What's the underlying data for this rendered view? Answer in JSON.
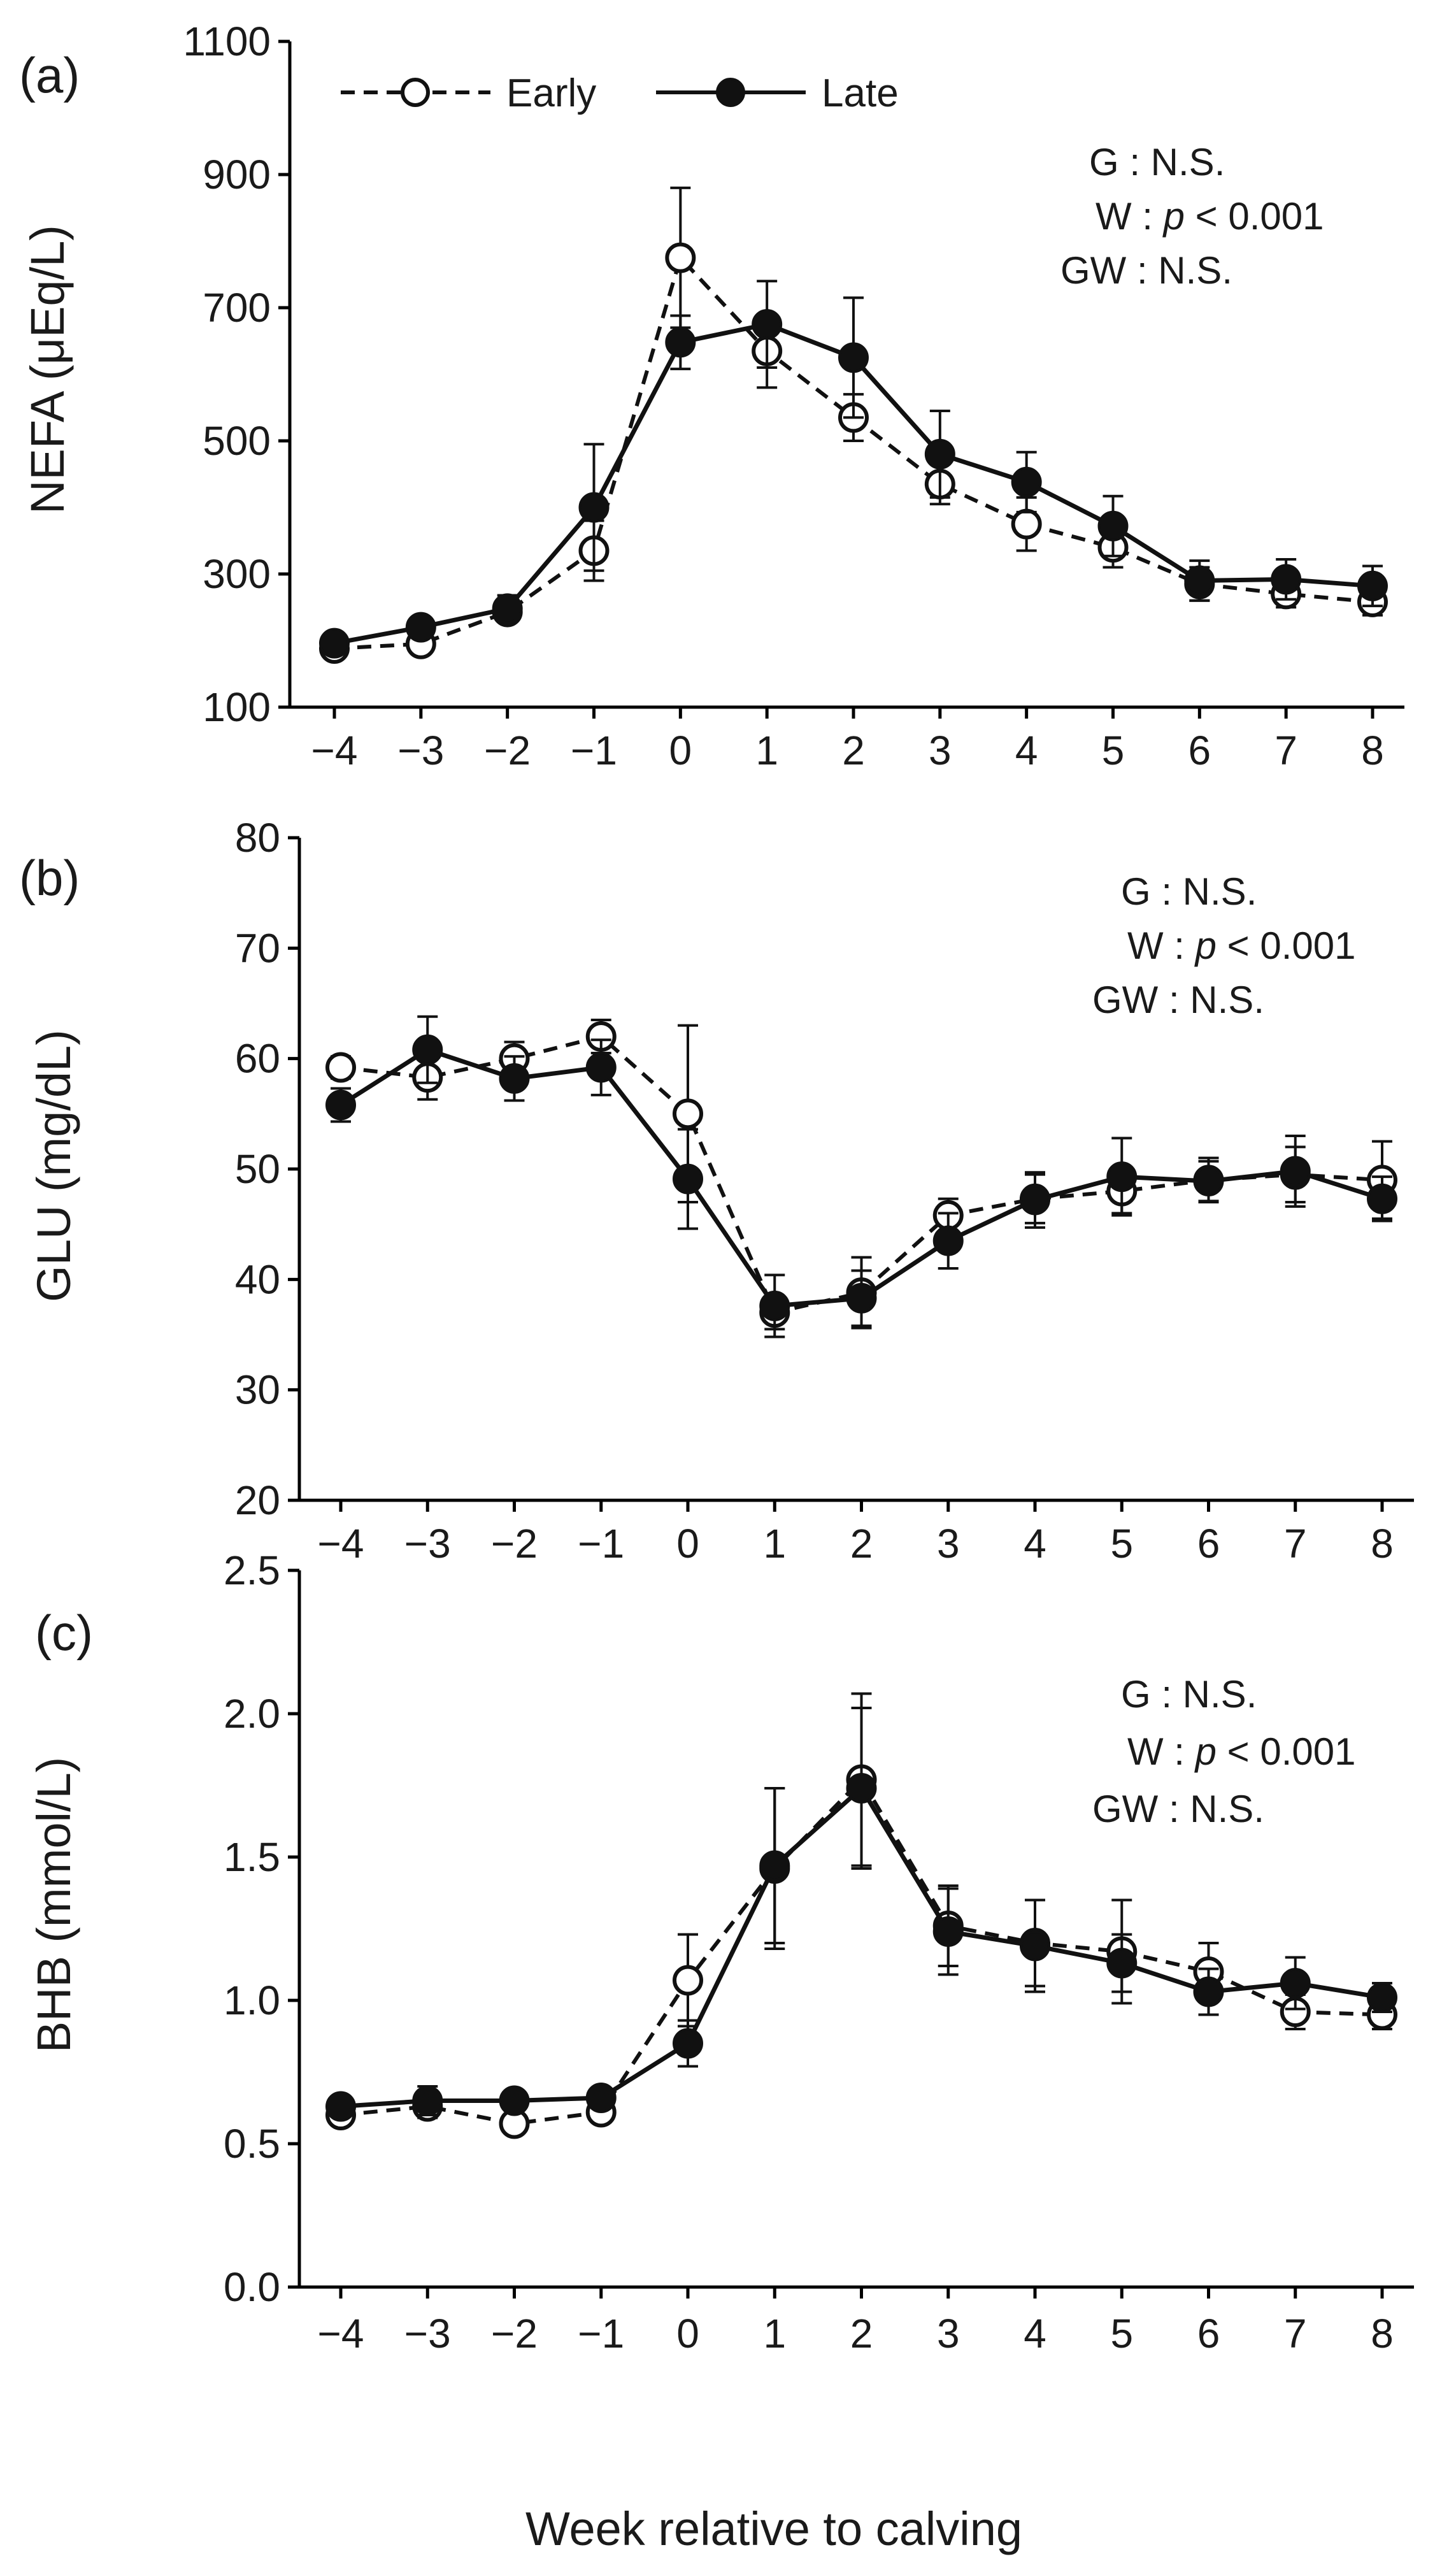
{
  "legend": {
    "early": "Early",
    "late": "Late"
  },
  "colors": {
    "axis": "#000000",
    "series": "#111111",
    "early_fill": "#ffffff",
    "late_fill": "#111111"
  },
  "xlabel": "Week relative to calving",
  "chart_data": [
    {
      "panel": "(a)",
      "type": "line",
      "ylabel": "NEFA (μEq/L)",
      "ylim": [
        100,
        1100
      ],
      "yticks": [
        100,
        300,
        500,
        700,
        900,
        1100
      ],
      "categories": [
        "−4",
        "−3",
        "−2",
        "−1",
        "0",
        "1",
        "2",
        "3",
        "4",
        "5",
        "6",
        "7",
        "8"
      ],
      "stats": {
        "g": "G : N.S.",
        "w_prefix": "W : ",
        "w_p": "p",
        "w_value": " < 0.001",
        "gw": "GW : N.S."
      },
      "series": [
        {
          "name": "Early",
          "style": "dashed-open",
          "values": [
            188,
            195,
            243,
            335,
            775,
            635,
            535,
            435,
            375,
            340,
            285,
            270,
            258
          ],
          "errors": [
            10,
            12,
            15,
            45,
            105,
            55,
            35,
            30,
            40,
            30,
            25,
            20,
            20
          ]
        },
        {
          "name": "Late",
          "style": "solid-filled",
          "values": [
            196,
            220,
            248,
            400,
            648,
            675,
            625,
            480,
            438,
            372,
            290,
            292,
            282
          ],
          "errors": [
            10,
            15,
            20,
            95,
            40,
            65,
            90,
            65,
            45,
            45,
            30,
            30,
            30
          ]
        }
      ]
    },
    {
      "panel": "(b)",
      "type": "line",
      "ylabel": "GLU  (mg/dL)",
      "ylim": [
        20,
        80
      ],
      "yticks": [
        20,
        30,
        40,
        50,
        60,
        70,
        80
      ],
      "categories": [
        "−4",
        "−3",
        "−2",
        "−1",
        "0",
        "1",
        "2",
        "3",
        "4",
        "5",
        "6",
        "7",
        "8"
      ],
      "stats": {
        "g": "G : N.S.",
        "w_prefix": "W : ",
        "w_p": "p",
        "w_value": " < 0.001",
        "gw": "GW : N.S."
      },
      "series": [
        {
          "name": "Early",
          "style": "dashed-open",
          "values": [
            59.2,
            58.3,
            60.0,
            62.0,
            55.0,
            37.0,
            38.8,
            45.8,
            47.3,
            48.0,
            49.0,
            49.5,
            49.0
          ],
          "errors": [
            1.0,
            2.0,
            1.5,
            1.5,
            8.0,
            1.5,
            3.2,
            1.5,
            2.2,
            2.0,
            2.0,
            2.5,
            3.5
          ]
        },
        {
          "name": "Late",
          "style": "solid-filled",
          "values": [
            55.8,
            60.8,
            58.2,
            59.2,
            49.1,
            37.6,
            38.3,
            43.5,
            47.2,
            49.3,
            48.9,
            49.8,
            47.3
          ],
          "errors": [
            1.5,
            3.0,
            2.0,
            2.5,
            4.5,
            2.8,
            2.5,
            2.5,
            2.5,
            3.5,
            1.8,
            3.2,
            2.0
          ]
        }
      ]
    },
    {
      "panel": "(c)",
      "type": "line",
      "ylabel": "BHB (mmol/L)",
      "ylim": [
        0.0,
        2.5
      ],
      "yticks": [
        "0.0",
        "0.5",
        "1.0",
        "1.5",
        "2.0",
        "2.5"
      ],
      "categories": [
        "−4",
        "−3",
        "−2",
        "−1",
        "0",
        "1",
        "2",
        "3",
        "4",
        "5",
        "6",
        "7",
        "8"
      ],
      "stats": {
        "g": "G : N.S.",
        "w_prefix": "W : ",
        "w_p": "p",
        "w_value": " < 0.001",
        "gw": "GW : N.S."
      },
      "series": [
        {
          "name": "Early",
          "style": "dashed-open",
          "values": [
            0.6,
            0.63,
            0.57,
            0.61,
            1.07,
            1.46,
            1.77,
            1.26,
            1.2,
            1.17,
            1.1,
            0.96,
            0.95
          ],
          "errors": [
            0.03,
            0.04,
            0.03,
            0.03,
            0.16,
            0.28,
            0.3,
            0.14,
            0.15,
            0.18,
            0.1,
            0.06,
            0.05
          ]
        },
        {
          "name": "Late",
          "style": "solid-filled",
          "values": [
            0.63,
            0.65,
            0.65,
            0.66,
            0.85,
            1.47,
            1.74,
            1.24,
            1.19,
            1.13,
            1.03,
            1.06,
            1.01
          ],
          "errors": [
            0.03,
            0.05,
            0.03,
            0.03,
            0.08,
            0.27,
            0.28,
            0.15,
            0.16,
            0.1,
            0.08,
            0.09,
            0.05
          ]
        }
      ]
    }
  ]
}
